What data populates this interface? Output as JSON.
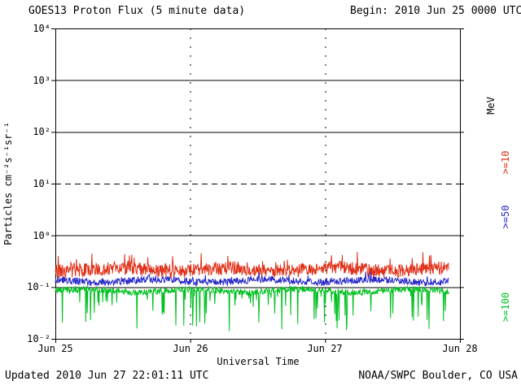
{
  "header": {
    "title": "GOES13 Proton Flux (5 minute data)",
    "begin_label": "Begin: 2010 Jun 25 0000 UTC"
  },
  "footer": {
    "updated": "Updated 2010 Jun 27 22:01:11 UTC",
    "source": "NOAA/SWPC Boulder, CO USA"
  },
  "chart_data": {
    "type": "line",
    "title": "GOES13 Proton Flux (5 minute data)",
    "xlabel": "Universal Time",
    "ylabel": "Particles cm⁻²s⁻¹sr⁻¹",
    "right_axis_unit": "MeV",
    "x_tick_labels": [
      "Jun 25",
      "Jun 26",
      "Jun 27",
      "Jun 28"
    ],
    "y_tick_labels": [
      "10⁴",
      "10³",
      "10²",
      "10¹",
      "10⁰",
      "10⁻¹",
      "10⁻²"
    ],
    "ylim_log10": [
      -2,
      4
    ],
    "x_days": 3,
    "points_per_day": 288,
    "n_points_plotted": 840,
    "grid": {
      "solid_log10": [
        3,
        2,
        0,
        -1
      ],
      "dashed_log10": [
        1
      ],
      "vertical_days": [
        1,
        2
      ]
    },
    "axis_color": "#000000",
    "background": "#ffffff",
    "legend_position": "right",
    "seed": 20100627,
    "series": [
      {
        "name": ">=100",
        "color": "#00c020",
        "base_log10": -1.07,
        "jitter_log10": 0.06,
        "spike_prob": 0.12,
        "spike_max_log10": -0.75,
        "approx_flux_range": [
          0.015,
          0.1
        ]
      },
      {
        "name": ">=50",
        "color": "#2828c8",
        "base_log10": -0.88,
        "jitter_log10": 0.07,
        "spike_prob": 0.04,
        "spike_max_log10": 0.12,
        "approx_flux_range": [
          0.09,
          0.2
        ]
      },
      {
        "name": ">=10",
        "color": "#e03018",
        "base_log10": -0.66,
        "jitter_log10": 0.13,
        "spike_prob": 0.07,
        "spike_max_log10": 0.28,
        "approx_flux_range": [
          0.15,
          0.5
        ]
      }
    ]
  }
}
